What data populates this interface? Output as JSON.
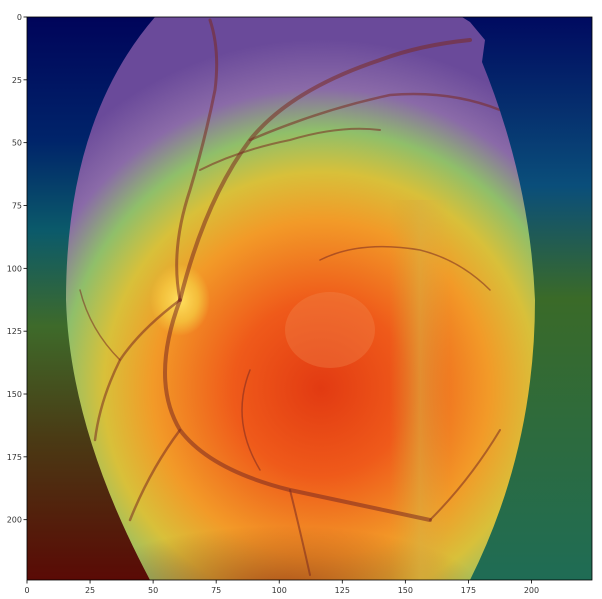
{
  "figure": {
    "image_desc": "retinal fundus photograph with jet-colormap heatmap overlay",
    "x_ticks": [
      "0",
      "25",
      "50",
      "75",
      "100",
      "125",
      "150",
      "175",
      "200"
    ],
    "y_ticks": [
      "0",
      "25",
      "50",
      "75",
      "100",
      "125",
      "150",
      "175",
      "200"
    ],
    "x_range": [
      0,
      224
    ],
    "y_range": [
      0,
      224
    ],
    "colors": {
      "background": "#ffffff",
      "axis": "#000000",
      "heatmap_cold": "#00005a",
      "heatmap_mid": "#2e7d4f",
      "heatmap_hot": "#ff3300",
      "fundus_base": "#c0703a"
    }
  }
}
